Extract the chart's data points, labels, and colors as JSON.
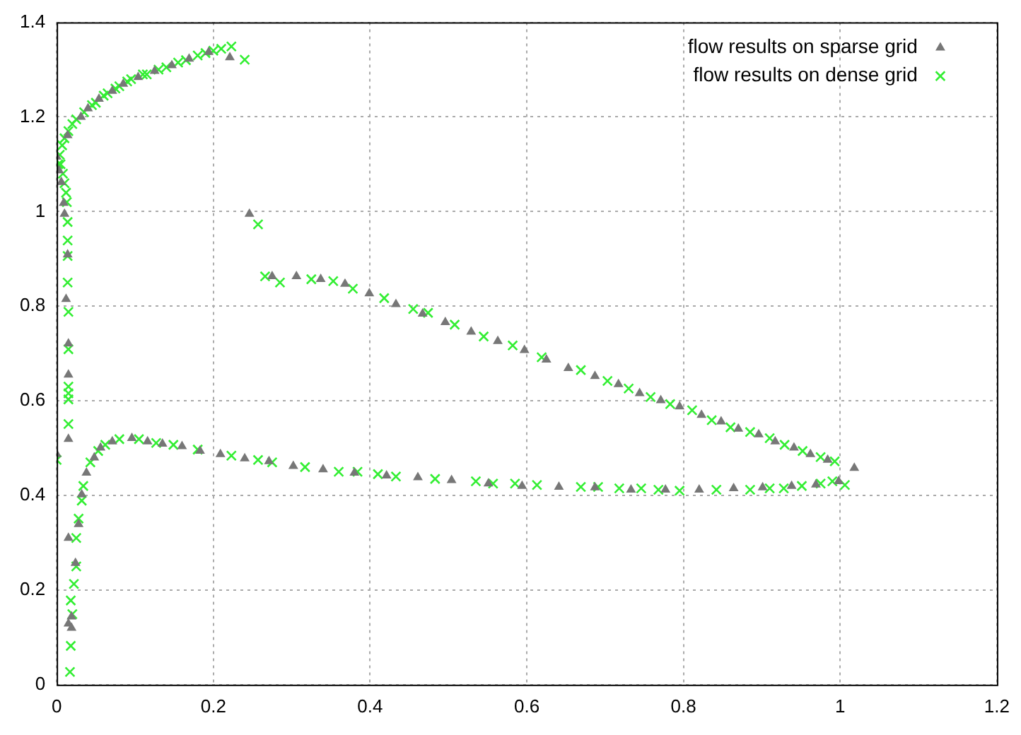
{
  "chart_data": {
    "type": "scatter",
    "xlim": [
      0,
      1.2
    ],
    "xticks": [
      0,
      0.2,
      0.4,
      0.6,
      0.8,
      1,
      1.2
    ],
    "ylim": [
      0,
      1.4
    ],
    "yticks": [
      0,
      0.2,
      0.4,
      0.6,
      0.8,
      1,
      1.2,
      1.4
    ],
    "grid": true,
    "legend": "top right",
    "series": [
      {
        "name": "flow results on sparse grid",
        "color": "#777777",
        "marker": "triangle",
        "x": [
          0.0,
          0.003,
          0.006,
          0.009,
          0.01,
          0.014,
          0.012,
          0.015,
          0.015,
          0.015,
          0.015,
          0.0,
          0.015,
          0.024,
          0.019,
          0.019,
          0.028,
          0.032,
          0.038,
          0.048,
          0.056,
          0.071,
          0.096,
          0.116,
          0.135,
          0.16,
          0.183,
          0.209,
          0.24,
          0.271,
          0.302,
          0.34,
          0.38,
          0.421,
          0.461,
          0.504,
          0.551,
          0.594,
          0.641,
          0.687,
          0.733,
          0.777,
          0.82,
          0.864,
          0.901,
          0.938,
          0.969,
          0.998,
          1.018,
          0.014,
          0.031,
          0.04,
          0.054,
          0.071,
          0.085,
          0.104,
          0.125,
          0.147,
          0.169,
          0.194,
          0.221,
          0.246,
          0.275,
          0.306,
          0.337,
          0.368,
          0.399,
          0.433,
          0.467,
          0.496,
          0.529,
          0.563,
          0.597,
          0.625,
          0.653,
          0.687,
          0.717,
          0.744,
          0.771,
          0.795,
          0.823,
          0.848,
          0.87,
          0.896,
          0.917,
          0.941,
          0.962,
          0.984
        ],
        "values": [
          1.116,
          1.087,
          1.062,
          1.018,
          0.995,
          0.909,
          0.815,
          0.721,
          0.655,
          0.519,
          0.31,
          0.487,
          0.129,
          0.257,
          0.144,
          0.12,
          0.339,
          0.402,
          0.448,
          0.48,
          0.501,
          0.514,
          0.521,
          0.514,
          0.509,
          0.504,
          0.494,
          0.487,
          0.478,
          0.472,
          0.462,
          0.455,
          0.448,
          0.442,
          0.438,
          0.432,
          0.425,
          0.42,
          0.418,
          0.417,
          0.412,
          0.412,
          0.412,
          0.415,
          0.417,
          0.42,
          0.423,
          0.43,
          0.458,
          1.161,
          1.2,
          1.218,
          1.238,
          1.255,
          1.27,
          1.284,
          1.297,
          1.309,
          1.323,
          1.337,
          1.326,
          0.995,
          0.863,
          0.863,
          0.857,
          0.847,
          0.827,
          0.804,
          0.784,
          0.766,
          0.746,
          0.726,
          0.707,
          0.687,
          0.669,
          0.652,
          0.635,
          0.616,
          0.601,
          0.588,
          0.57,
          0.556,
          0.541,
          0.529,
          0.514,
          0.501,
          0.487,
          0.475
        ]
      },
      {
        "name": "flow results on dense grid",
        "color": "#33ee33",
        "marker": "cross",
        "x": [
          0.002,
          0.004,
          0.007,
          0.01,
          0.015,
          0.02,
          0.025,
          0.035,
          0.045,
          0.05,
          0.06,
          0.065,
          0.075,
          0.08,
          0.09,
          0.095,
          0.11,
          0.115,
          0.13,
          0.14,
          0.155,
          0.165,
          0.18,
          0.19,
          0.2,
          0.21,
          0.223,
          0.24,
          0.005,
          0.008,
          0.01,
          0.012,
          0.013,
          0.014,
          0.014,
          0.014,
          0.014,
          0.015,
          0.015,
          0.015,
          0.015,
          0.015,
          0.015,
          0,
          0.025,
          0.025,
          0.022,
          0.018,
          0.02,
          0.018,
          0.017,
          0.028,
          0.032,
          0.034,
          0.043,
          0.053,
          0.062,
          0.08,
          0.105,
          0.127,
          0.149,
          0.18,
          0.223,
          0.257,
          0.275,
          0.317,
          0.36,
          0.384,
          0.41,
          0.433,
          0.483,
          0.535,
          0.557,
          0.585,
          0.613,
          0.669,
          0.691,
          0.718,
          0.746,
          0.768,
          0.795,
          0.842,
          0.885,
          0.91,
          0.928,
          0.951,
          0.975,
          0.99,
          1.006,
          0.257,
          0.266,
          0.285,
          0.325,
          0.353,
          0.378,
          0.418,
          0.455,
          0.474,
          0.508,
          0.545,
          0.582,
          0.619,
          0.669,
          0.703,
          0.73,
          0.758,
          0.783,
          0.811,
          0.836,
          0.86,
          0.885,
          0.91,
          0.929,
          0.952,
          0.975,
          0.993
        ],
        "values": [
          1.1,
          1.12,
          1.14,
          1.155,
          1.17,
          1.185,
          1.195,
          1.21,
          1.225,
          1.23,
          1.245,
          1.25,
          1.26,
          1.265,
          1.275,
          1.28,
          1.29,
          1.29,
          1.3,
          1.305,
          1.315,
          1.32,
          1.33,
          1.335,
          1.34,
          1.344,
          1.349,
          1.321,
          1.1,
          1.08,
          1.06,
          1.04,
          1.02,
          0.978,
          0.939,
          0.906,
          0.85,
          0.788,
          0.709,
          0.63,
          0.616,
          0.603,
          0.551,
          0.475,
          0.31,
          0.25,
          0.213,
          0.178,
          0.149,
          0.082,
          0.027,
          0.351,
          0.389,
          0.42,
          0.47,
          0.494,
          0.507,
          0.519,
          0.519,
          0.511,
          0.507,
          0.497,
          0.484,
          0.475,
          0.47,
          0.46,
          0.45,
          0.45,
          0.445,
          0.44,
          0.435,
          0.43,
          0.425,
          0.425,
          0.422,
          0.418,
          0.418,
          0.415,
          0.415,
          0.412,
          0.41,
          0.412,
          0.412,
          0.415,
          0.415,
          0.42,
          0.425,
          0.43,
          0.422,
          0.973,
          0.863,
          0.85,
          0.857,
          0.853,
          0.837,
          0.817,
          0.794,
          0.786,
          0.761,
          0.736,
          0.717,
          0.692,
          0.665,
          0.642,
          0.626,
          0.608,
          0.593,
          0.58,
          0.559,
          0.544,
          0.534,
          0.521,
          0.507,
          0.494,
          0.481,
          0.472
        ]
      }
    ]
  }
}
